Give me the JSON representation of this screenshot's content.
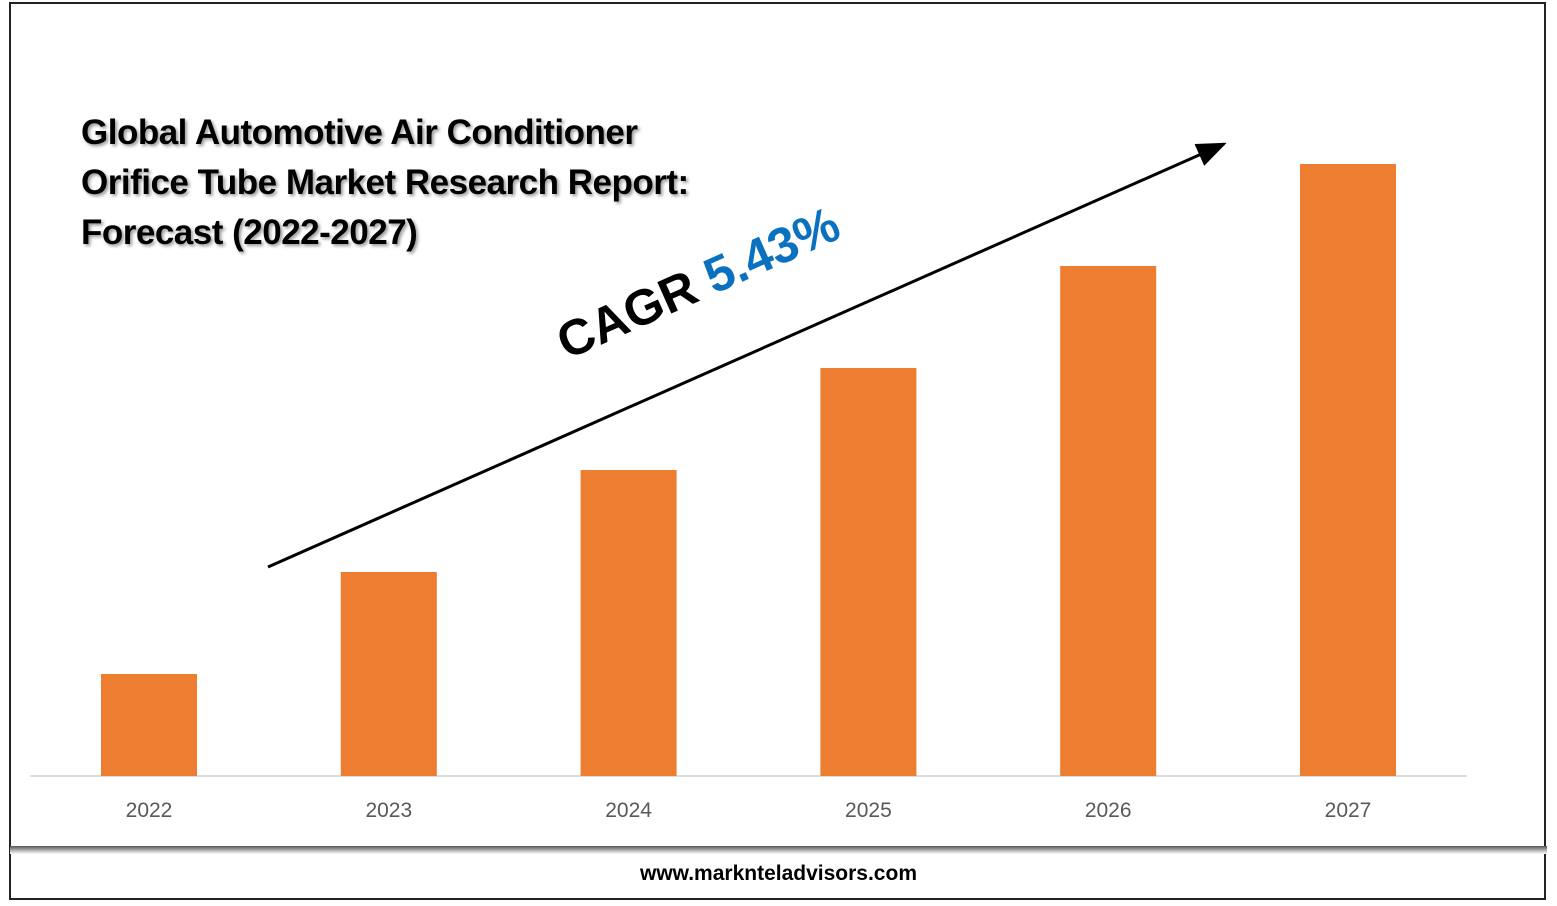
{
  "chart_data": {
    "type": "bar",
    "title_lines": [
      "Global Automotive Air Conditioner",
      "Orifice Tube Market Research Report:",
      "Forecast (2022-2027)"
    ],
    "categories": [
      "2022",
      "2023",
      "2024",
      "2025",
      "2026",
      "2027"
    ],
    "values": [
      1,
      2,
      3,
      4,
      5,
      6
    ],
    "value_units": "relative (no y-axis shown)",
    "ylim": [
      0,
      6
    ],
    "bar_color": "#ed7d31",
    "annotation": {
      "label": "CAGR",
      "value": "5.43%",
      "value_color": "#0a70c0"
    },
    "grid": false,
    "legend": "none"
  },
  "footer": {
    "url": "www.marknteladvisors.com"
  }
}
